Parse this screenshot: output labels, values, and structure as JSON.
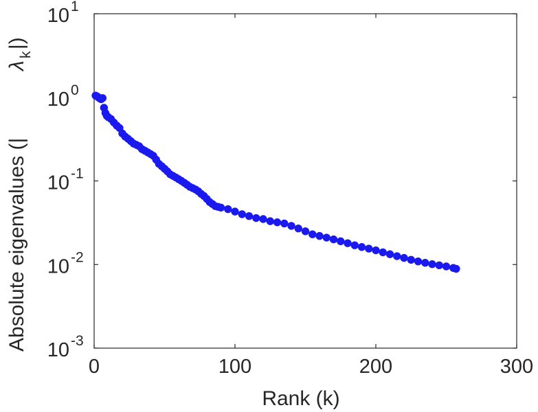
{
  "chart_data": {
    "type": "scatter",
    "title": "",
    "xlabel": "Rank (k)",
    "ylabel": "Absolute eigenvalues (|",
    "ylabel_symbol": "λ",
    "ylabel_subscript": "k",
    "ylabel_close": "|)",
    "xlim": [
      0,
      300
    ],
    "ylim": [
      0.001,
      10
    ],
    "yscale": "log",
    "grid": false,
    "legend": "none",
    "x_ticks": [
      {
        "value": 0,
        "label": "0"
      },
      {
        "value": 100,
        "label": "100"
      },
      {
        "value": 200,
        "label": "200"
      },
      {
        "value": 300,
        "label": "300"
      }
    ],
    "y_ticks": [
      {
        "value": 10,
        "base": "10",
        "exp": "1"
      },
      {
        "value": 1,
        "base": "10",
        "exp": "0"
      },
      {
        "value": 0.1,
        "base": "10",
        "exp": "-1"
      },
      {
        "value": 0.01,
        "base": "10",
        "exp": "-2"
      },
      {
        "value": 0.001,
        "base": "10",
        "exp": "-3"
      }
    ],
    "marker_color": "#1a1aee",
    "series": [
      {
        "x": [
          1,
          2,
          3,
          4,
          5,
          6,
          7,
          8,
          9,
          10,
          12,
          14,
          16,
          18,
          20,
          22,
          24,
          26,
          28,
          30,
          32,
          34,
          36,
          38,
          40,
          42,
          44,
          46,
          48,
          50,
          52,
          54,
          56,
          58,
          60,
          62,
          64,
          66,
          68,
          70,
          72,
          74,
          76,
          78,
          80,
          82,
          84,
          86,
          88,
          90,
          95,
          100,
          105,
          110,
          115,
          120,
          125,
          130,
          135,
          140,
          145,
          150,
          155,
          160,
          165,
          170,
          175,
          180,
          185,
          190,
          195,
          200,
          205,
          210,
          215,
          220,
          225,
          230,
          235,
          240,
          245,
          250,
          255,
          257
        ],
        "y": [
          1.05,
          1.03,
          1.0,
          0.97,
          0.95,
          0.98,
          0.75,
          0.65,
          0.6,
          0.58,
          0.55,
          0.5,
          0.46,
          0.43,
          0.37,
          0.34,
          0.32,
          0.3,
          0.28,
          0.27,
          0.26,
          0.24,
          0.23,
          0.22,
          0.21,
          0.2,
          0.18,
          0.16,
          0.15,
          0.14,
          0.13,
          0.12,
          0.115,
          0.11,
          0.105,
          0.1,
          0.095,
          0.09,
          0.085,
          0.082,
          0.079,
          0.075,
          0.07,
          0.066,
          0.061,
          0.056,
          0.053,
          0.05,
          0.049,
          0.048,
          0.046,
          0.043,
          0.04,
          0.038,
          0.036,
          0.035,
          0.033,
          0.032,
          0.031,
          0.029,
          0.027,
          0.025,
          0.023,
          0.022,
          0.021,
          0.02,
          0.019,
          0.018,
          0.017,
          0.0162,
          0.0155,
          0.0148,
          0.014,
          0.0133,
          0.0126,
          0.012,
          0.0114,
          0.0109,
          0.0105,
          0.0101,
          0.0098,
          0.0095,
          0.0091,
          0.0089
        ]
      }
    ]
  }
}
